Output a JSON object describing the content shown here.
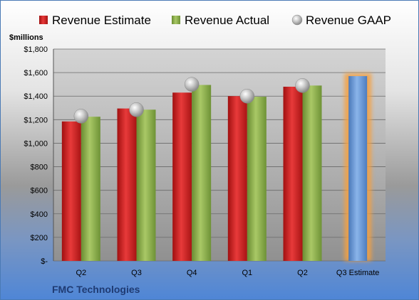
{
  "chart_data": {
    "type": "bar",
    "title": "",
    "unit_label": "$millions",
    "company": "FMC Technologies",
    "categories": [
      "Q2",
      "Q3",
      "Q4",
      "Q1",
      "Q2",
      "Q3 Estimate"
    ],
    "series": [
      {
        "name": "Revenue Estimate",
        "color": "#d32020",
        "values": [
          1185,
          1295,
          1430,
          1400,
          1480,
          null
        ]
      },
      {
        "name": "Revenue Actual",
        "color": "#8db04a",
        "values": [
          1225,
          1285,
          1495,
          1395,
          1490,
          null
        ]
      },
      {
        "name": "Revenue GAAP",
        "color": "#b8b8b8",
        "values": [
          1230,
          1285,
          1500,
          1400,
          1490,
          null
        ]
      }
    ],
    "estimate_bar": {
      "category": "Q3 Estimate",
      "value": 1570,
      "color": "#6b9ad6",
      "glow": "#f5a040"
    },
    "ylim": [
      0,
      1800
    ],
    "yticks": [
      0,
      200,
      400,
      600,
      800,
      1000,
      1200,
      1400,
      1600,
      1800
    ],
    "ytick_labels": [
      "$-",
      "$200",
      "$400",
      "$600",
      "$800",
      "$1,000",
      "$1,200",
      "$1,400",
      "$1,600",
      "$1,800"
    ],
    "grid": true,
    "legend_position": "top"
  }
}
